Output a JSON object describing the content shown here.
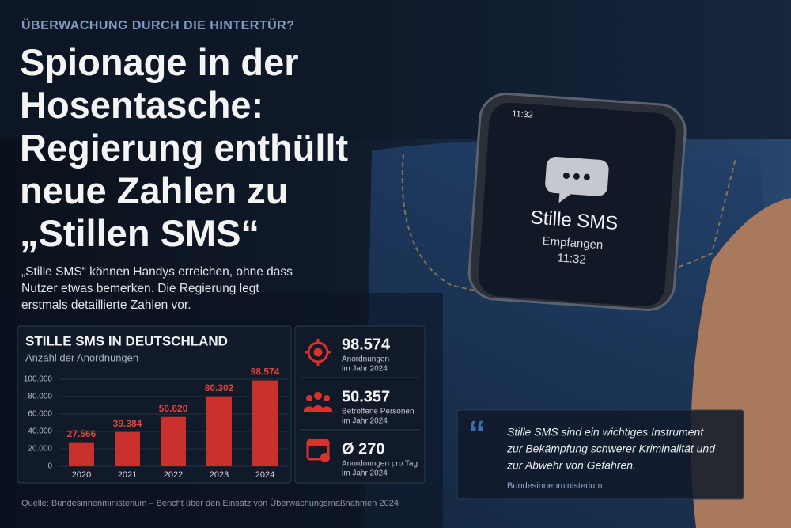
{
  "header": {
    "kicker": "ÜBERWACHUNG DURCH DIE HINTERTÜR?",
    "title_lines": [
      "Spionage in der",
      "Hosentasche:",
      "Regierung enthüllt",
      "neue Zahlen zu",
      "„Stillen SMS“"
    ],
    "lead": "„Stille SMS“ können Handys erreichen, ohne dass Nutzer etwas bemerken. Die Regierung legt erstmals detaillierte Zahlen vor."
  },
  "phone": {
    "status_time": "11:32",
    "message": "Stille SMS",
    "state": "Empfangen",
    "time": "11:32"
  },
  "chart_data": {
    "type": "bar",
    "title": "STILLE SMS IN DEUTSCHLAND",
    "subtitle": "Anzahl der Anordnungen",
    "categories": [
      "2020",
      "2021",
      "2022",
      "2023",
      "2024"
    ],
    "values": [
      27566,
      39384,
      56620,
      80302,
      98574
    ],
    "value_labels": [
      "27.566",
      "39.384",
      "56.620",
      "80.302",
      "98.574"
    ],
    "color": "#c8302c",
    "label_color": "#e4433c",
    "ylim": [
      0,
      100000
    ],
    "yticks": [
      0,
      {
        "value": 20000,
        "label": "20.000"
      },
      {
        "value": 40000,
        "label": "40.000"
      },
      {
        "value": 60000,
        "label": "60.000"
      },
      {
        "value": 80000,
        "label": "80.000"
      },
      {
        "value": 100000,
        "label": "100.000"
      }
    ]
  },
  "stats": [
    {
      "value": "98.574",
      "label_lines": [
        "Anordnungen",
        "im Jahr 2024"
      ]
    },
    {
      "value": "50.357",
      "label_lines": [
        "Betroffene Personen",
        "im Jahr 2024"
      ]
    },
    {
      "value": "Ø 270",
      "label_lines": [
        "Anordnungen pro Tag",
        "im Jahr 2024"
      ]
    }
  ],
  "quote": {
    "text_lines": [
      "Stille SMS sind ein wichtiges Instrument",
      "zur Bekämpfung schwerer Kriminalität und",
      "zur Abwehr von Gefahren."
    ],
    "source": "Bundesinnenministerium"
  },
  "source": "Quelle: Bundesinnenministerium – Bericht über den Einsatz von Überwachungsmaßnahmen 2024"
}
